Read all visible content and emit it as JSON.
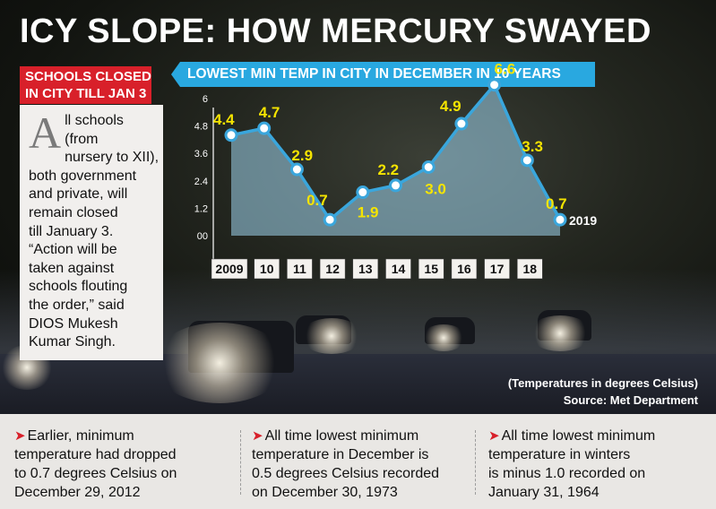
{
  "headline": "ICY SLOPE: HOW MERCURY SWAYED",
  "notice": {
    "title_lines": [
      "SCHOOLS CLOSED",
      "IN CITY TILL JAN 3"
    ],
    "dropcap": "A",
    "lines": [
      "ll schools",
      "(from",
      "nursery to XII),",
      "both government",
      "and private, will",
      "remain closed",
      "till January 3.",
      "“Action will be",
      "taken against",
      "schools flouting",
      "the order,” said",
      "DIOS Mukesh",
      "Kumar Singh."
    ]
  },
  "chart_data": {
    "type": "area",
    "title": "LOWEST MIN TEMP IN CITY IN DECEMBER IN 10 YEARS",
    "categories": [
      "2009",
      "10",
      "11",
      "12",
      "13",
      "14",
      "15",
      "16",
      "17",
      "18",
      "2019"
    ],
    "values": [
      4.4,
      4.7,
      2.9,
      0.7,
      1.9,
      2.2,
      3.0,
      4.9,
      6.6,
      3.3,
      0.7
    ],
    "labels": [
      "4.4",
      "4.7",
      "2.9",
      "0.7",
      "1.9",
      "2.2",
      "3.0",
      "4.9",
      "6.6",
      "3.3",
      "0.7"
    ],
    "y_ticks": [
      "6",
      "4.8",
      "3.6",
      "2.4",
      "1.2",
      "00"
    ],
    "ylim": [
      0,
      6
    ],
    "grid": false,
    "colors": {
      "line": "#3aa6dc",
      "fill": "#9fd3ec",
      "marker": "#3aa6dc",
      "label": "#f5e400"
    }
  },
  "source": {
    "note": "(Temperatures in degrees Celsius)",
    "credit": "Source: Met Department"
  },
  "footer": [
    {
      "arrow": "➤",
      "lines": [
        "Earlier, minimum",
        "temperature had dropped",
        "to 0.7 degrees Celsius on",
        "December 29, 2012"
      ]
    },
    {
      "arrow": "➤",
      "lines": [
        "All time lowest minimum",
        "temperature  in December is",
        "0.5 degrees Celsius recorded",
        "on December 30, 1973"
      ]
    },
    {
      "arrow": "➤",
      "lines": [
        "All time lowest minimum",
        "temperature in winters",
        "is minus 1.0 recorded on",
        "January 31, 1964"
      ]
    }
  ]
}
